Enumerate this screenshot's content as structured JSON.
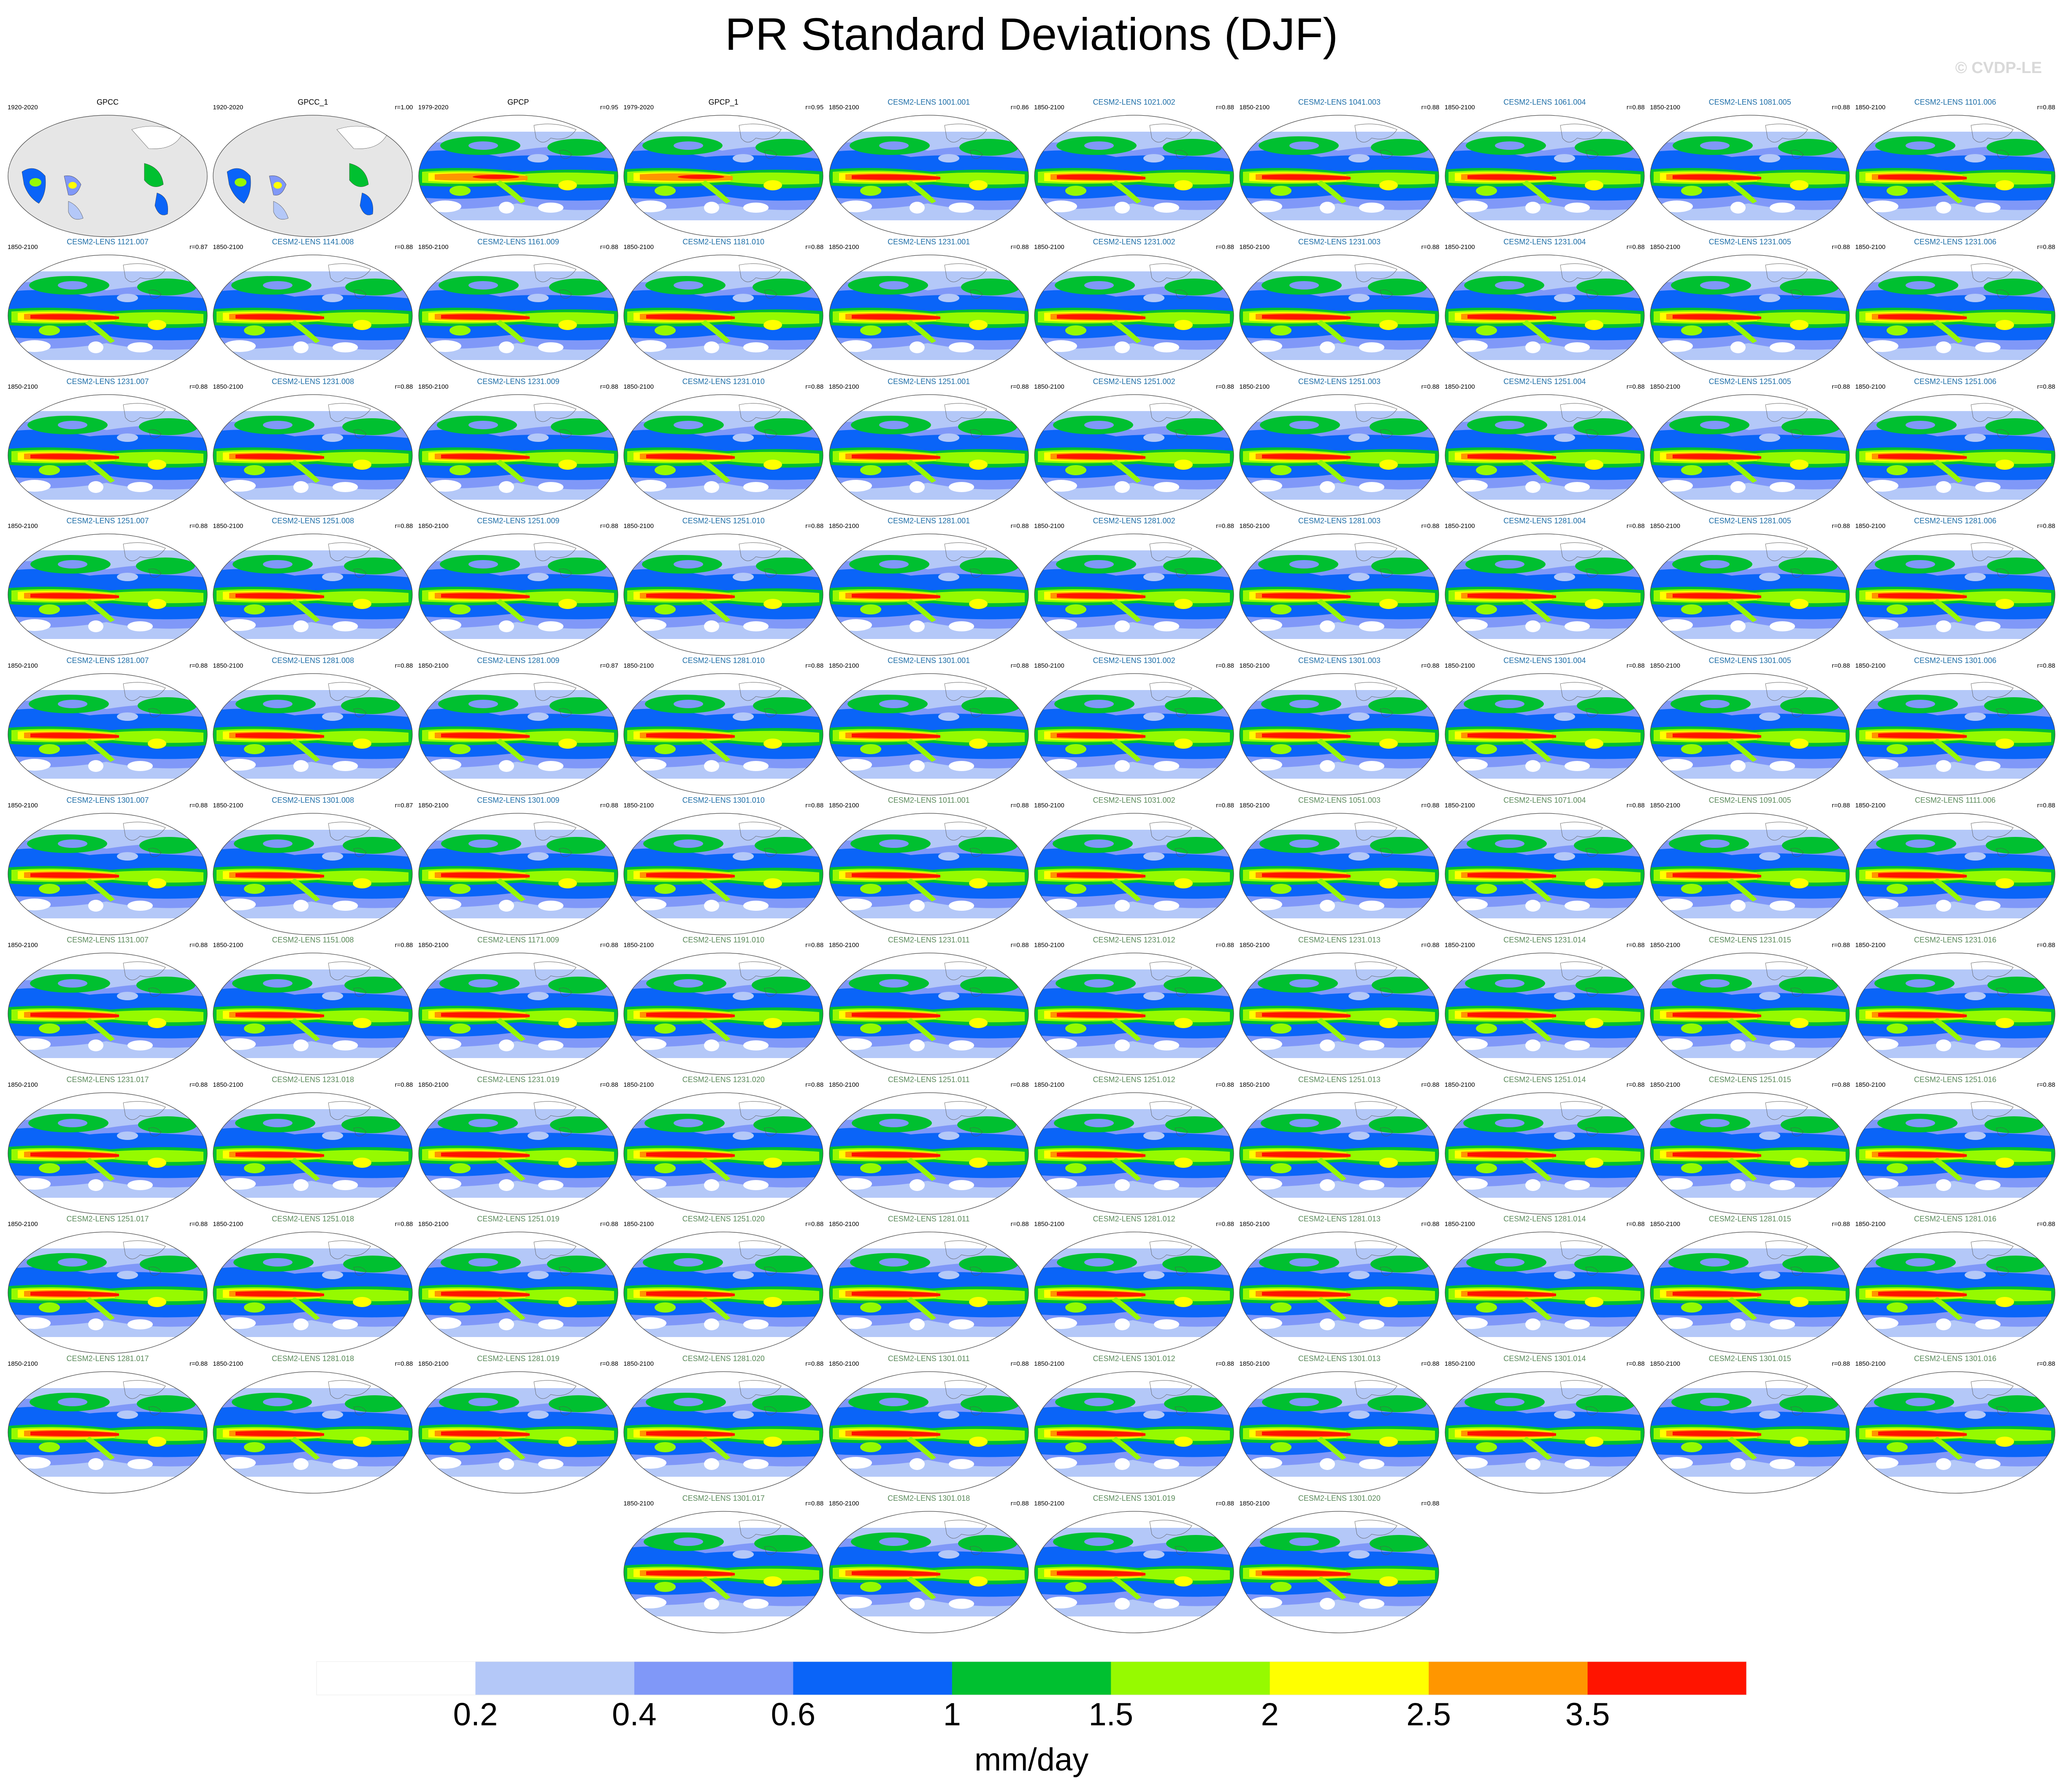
{
  "title": "PR Standard Deviations (DJF)",
  "watermark": "© CVDP-LE",
  "units": "mm/day",
  "colorbar": {
    "colors": [
      "#ffffff",
      "#b4c8f8",
      "#8098f8",
      "#0a64f8",
      "#00c030",
      "#96fa00",
      "#ffff00",
      "#ff9600",
      "#ff1400"
    ],
    "ticks": [
      "0.2",
      "0.4",
      "0.6",
      "1",
      "1.5",
      "2",
      "2.5",
      "3.5"
    ]
  },
  "colors": {
    "title_obs": "#000000",
    "title_blue": "#1f6fa8",
    "title_green": "#5a8a5a"
  },
  "panels": [
    {
      "title": "GPCC",
      "left": "1920-2020",
      "right": "",
      "kind": "obs"
    },
    {
      "title": "GPCC_1",
      "left": "1920-2020",
      "right": "r=1.00",
      "kind": "obs"
    },
    {
      "title": "GPCP",
      "left": "1979-2020",
      "right": "r=0.95",
      "kind": "obs"
    },
    {
      "title": "GPCP_1",
      "left": "1979-2020",
      "right": "r=0.95",
      "kind": "obs"
    },
    {
      "title": "CESM2-LENS 1001.001",
      "left": "1850-2100",
      "right": "r=0.86",
      "kind": "blue"
    },
    {
      "title": "CESM2-LENS 1021.002",
      "left": "1850-2100",
      "right": "r=0.88",
      "kind": "blue"
    },
    {
      "title": "CESM2-LENS 1041.003",
      "left": "1850-2100",
      "right": "r=0.88",
      "kind": "blue"
    },
    {
      "title": "CESM2-LENS 1061.004",
      "left": "1850-2100",
      "right": "r=0.88",
      "kind": "blue"
    },
    {
      "title": "CESM2-LENS 1081.005",
      "left": "1850-2100",
      "right": "r=0.88",
      "kind": "blue"
    },
    {
      "title": "CESM2-LENS 1101.006",
      "left": "1850-2100",
      "right": "r=0.88",
      "kind": "blue"
    },
    {
      "title": "CESM2-LENS 1121.007",
      "left": "1850-2100",
      "right": "r=0.87",
      "kind": "blue"
    },
    {
      "title": "CESM2-LENS 1141.008",
      "left": "1850-2100",
      "right": "r=0.88",
      "kind": "blue"
    },
    {
      "title": "CESM2-LENS 1161.009",
      "left": "1850-2100",
      "right": "r=0.88",
      "kind": "blue"
    },
    {
      "title": "CESM2-LENS 1181.010",
      "left": "1850-2100",
      "right": "r=0.88",
      "kind": "blue"
    },
    {
      "title": "CESM2-LENS 1231.001",
      "left": "1850-2100",
      "right": "r=0.88",
      "kind": "blue"
    },
    {
      "title": "CESM2-LENS 1231.002",
      "left": "1850-2100",
      "right": "r=0.88",
      "kind": "blue"
    },
    {
      "title": "CESM2-LENS 1231.003",
      "left": "1850-2100",
      "right": "r=0.88",
      "kind": "blue"
    },
    {
      "title": "CESM2-LENS 1231.004",
      "left": "1850-2100",
      "right": "r=0.88",
      "kind": "blue"
    },
    {
      "title": "CESM2-LENS 1231.005",
      "left": "1850-2100",
      "right": "r=0.88",
      "kind": "blue"
    },
    {
      "title": "CESM2-LENS 1231.006",
      "left": "1850-2100",
      "right": "r=0.88",
      "kind": "blue"
    },
    {
      "title": "CESM2-LENS 1231.007",
      "left": "1850-2100",
      "right": "r=0.88",
      "kind": "blue"
    },
    {
      "title": "CESM2-LENS 1231.008",
      "left": "1850-2100",
      "right": "r=0.88",
      "kind": "blue"
    },
    {
      "title": "CESM2-LENS 1231.009",
      "left": "1850-2100",
      "right": "r=0.88",
      "kind": "blue"
    },
    {
      "title": "CESM2-LENS 1231.010",
      "left": "1850-2100",
      "right": "r=0.88",
      "kind": "blue"
    },
    {
      "title": "CESM2-LENS 1251.001",
      "left": "1850-2100",
      "right": "r=0.88",
      "kind": "blue"
    },
    {
      "title": "CESM2-LENS 1251.002",
      "left": "1850-2100",
      "right": "r=0.88",
      "kind": "blue"
    },
    {
      "title": "CESM2-LENS 1251.003",
      "left": "1850-2100",
      "right": "r=0.88",
      "kind": "blue"
    },
    {
      "title": "CESM2-LENS 1251.004",
      "left": "1850-2100",
      "right": "r=0.88",
      "kind": "blue"
    },
    {
      "title": "CESM2-LENS 1251.005",
      "left": "1850-2100",
      "right": "r=0.88",
      "kind": "blue"
    },
    {
      "title": "CESM2-LENS 1251.006",
      "left": "1850-2100",
      "right": "r=0.88",
      "kind": "blue"
    },
    {
      "title": "CESM2-LENS 1251.007",
      "left": "1850-2100",
      "right": "r=0.88",
      "kind": "blue"
    },
    {
      "title": "CESM2-LENS 1251.008",
      "left": "1850-2100",
      "right": "r=0.88",
      "kind": "blue"
    },
    {
      "title": "CESM2-LENS 1251.009",
      "left": "1850-2100",
      "right": "r=0.88",
      "kind": "blue"
    },
    {
      "title": "CESM2-LENS 1251.010",
      "left": "1850-2100",
      "right": "r=0.88",
      "kind": "blue"
    },
    {
      "title": "CESM2-LENS 1281.001",
      "left": "1850-2100",
      "right": "r=0.88",
      "kind": "blue"
    },
    {
      "title": "CESM2-LENS 1281.002",
      "left": "1850-2100",
      "right": "r=0.88",
      "kind": "blue"
    },
    {
      "title": "CESM2-LENS 1281.003",
      "left": "1850-2100",
      "right": "r=0.88",
      "kind": "blue"
    },
    {
      "title": "CESM2-LENS 1281.004",
      "left": "1850-2100",
      "right": "r=0.88",
      "kind": "blue"
    },
    {
      "title": "CESM2-LENS 1281.005",
      "left": "1850-2100",
      "right": "r=0.88",
      "kind": "blue"
    },
    {
      "title": "CESM2-LENS 1281.006",
      "left": "1850-2100",
      "right": "r=0.88",
      "kind": "blue"
    },
    {
      "title": "CESM2-LENS 1281.007",
      "left": "1850-2100",
      "right": "r=0.88",
      "kind": "blue"
    },
    {
      "title": "CESM2-LENS 1281.008",
      "left": "1850-2100",
      "right": "r=0.88",
      "kind": "blue"
    },
    {
      "title": "CESM2-LENS 1281.009",
      "left": "1850-2100",
      "right": "r=0.87",
      "kind": "blue"
    },
    {
      "title": "CESM2-LENS 1281.010",
      "left": "1850-2100",
      "right": "r=0.88",
      "kind": "blue"
    },
    {
      "title": "CESM2-LENS 1301.001",
      "left": "1850-2100",
      "right": "r=0.88",
      "kind": "blue"
    },
    {
      "title": "CESM2-LENS 1301.002",
      "left": "1850-2100",
      "right": "r=0.88",
      "kind": "blue"
    },
    {
      "title": "CESM2-LENS 1301.003",
      "left": "1850-2100",
      "right": "r=0.88",
      "kind": "blue"
    },
    {
      "title": "CESM2-LENS 1301.004",
      "left": "1850-2100",
      "right": "r=0.88",
      "kind": "blue"
    },
    {
      "title": "CESM2-LENS 1301.005",
      "left": "1850-2100",
      "right": "r=0.88",
      "kind": "blue"
    },
    {
      "title": "CESM2-LENS 1301.006",
      "left": "1850-2100",
      "right": "r=0.88",
      "kind": "blue"
    },
    {
      "title": "CESM2-LENS 1301.007",
      "left": "1850-2100",
      "right": "r=0.88",
      "kind": "blue"
    },
    {
      "title": "CESM2-LENS 1301.008",
      "left": "1850-2100",
      "right": "r=0.87",
      "kind": "blue"
    },
    {
      "title": "CESM2-LENS 1301.009",
      "left": "1850-2100",
      "right": "r=0.88",
      "kind": "blue"
    },
    {
      "title": "CESM2-LENS 1301.010",
      "left": "1850-2100",
      "right": "r=0.88",
      "kind": "blue"
    },
    {
      "title": "CESM2-LENS 1011.001",
      "left": "1850-2100",
      "right": "r=0.88",
      "kind": "green"
    },
    {
      "title": "CESM2-LENS 1031.002",
      "left": "1850-2100",
      "right": "r=0.88",
      "kind": "green"
    },
    {
      "title": "CESM2-LENS 1051.003",
      "left": "1850-2100",
      "right": "r=0.88",
      "kind": "green"
    },
    {
      "title": "CESM2-LENS 1071.004",
      "left": "1850-2100",
      "right": "r=0.88",
      "kind": "green"
    },
    {
      "title": "CESM2-LENS 1091.005",
      "left": "1850-2100",
      "right": "r=0.88",
      "kind": "green"
    },
    {
      "title": "CESM2-LENS 1111.006",
      "left": "1850-2100",
      "right": "r=0.88",
      "kind": "green"
    },
    {
      "title": "CESM2-LENS 1131.007",
      "left": "1850-2100",
      "right": "r=0.88",
      "kind": "green"
    },
    {
      "title": "CESM2-LENS 1151.008",
      "left": "1850-2100",
      "right": "r=0.88",
      "kind": "green"
    },
    {
      "title": "CESM2-LENS 1171.009",
      "left": "1850-2100",
      "right": "r=0.88",
      "kind": "green"
    },
    {
      "title": "CESM2-LENS 1191.010",
      "left": "1850-2100",
      "right": "r=0.88",
      "kind": "green"
    },
    {
      "title": "CESM2-LENS 1231.011",
      "left": "1850-2100",
      "right": "r=0.88",
      "kind": "green"
    },
    {
      "title": "CESM2-LENS 1231.012",
      "left": "1850-2100",
      "right": "r=0.88",
      "kind": "green"
    },
    {
      "title": "CESM2-LENS 1231.013",
      "left": "1850-2100",
      "right": "r=0.88",
      "kind": "green"
    },
    {
      "title": "CESM2-LENS 1231.014",
      "left": "1850-2100",
      "right": "r=0.88",
      "kind": "green"
    },
    {
      "title": "CESM2-LENS 1231.015",
      "left": "1850-2100",
      "right": "r=0.88",
      "kind": "green"
    },
    {
      "title": "CESM2-LENS 1231.016",
      "left": "1850-2100",
      "right": "r=0.88",
      "kind": "green"
    },
    {
      "title": "CESM2-LENS 1231.017",
      "left": "1850-2100",
      "right": "r=0.88",
      "kind": "green"
    },
    {
      "title": "CESM2-LENS 1231.018",
      "left": "1850-2100",
      "right": "r=0.88",
      "kind": "green"
    },
    {
      "title": "CESM2-LENS 1231.019",
      "left": "1850-2100",
      "right": "r=0.88",
      "kind": "green"
    },
    {
      "title": "CESM2-LENS 1231.020",
      "left": "1850-2100",
      "right": "r=0.88",
      "kind": "green"
    },
    {
      "title": "CESM2-LENS 1251.011",
      "left": "1850-2100",
      "right": "r=0.88",
      "kind": "green"
    },
    {
      "title": "CESM2-LENS 1251.012",
      "left": "1850-2100",
      "right": "r=0.88",
      "kind": "green"
    },
    {
      "title": "CESM2-LENS 1251.013",
      "left": "1850-2100",
      "right": "r=0.88",
      "kind": "green"
    },
    {
      "title": "CESM2-LENS 1251.014",
      "left": "1850-2100",
      "right": "r=0.88",
      "kind": "green"
    },
    {
      "title": "CESM2-LENS 1251.015",
      "left": "1850-2100",
      "right": "r=0.88",
      "kind": "green"
    },
    {
      "title": "CESM2-LENS 1251.016",
      "left": "1850-2100",
      "right": "r=0.88",
      "kind": "green"
    },
    {
      "title": "CESM2-LENS 1251.017",
      "left": "1850-2100",
      "right": "r=0.88",
      "kind": "green"
    },
    {
      "title": "CESM2-LENS 1251.018",
      "left": "1850-2100",
      "right": "r=0.88",
      "kind": "green"
    },
    {
      "title": "CESM2-LENS 1251.019",
      "left": "1850-2100",
      "right": "r=0.88",
      "kind": "green"
    },
    {
      "title": "CESM2-LENS 1251.020",
      "left": "1850-2100",
      "right": "r=0.88",
      "kind": "green"
    },
    {
      "title": "CESM2-LENS 1281.011",
      "left": "1850-2100",
      "right": "r=0.88",
      "kind": "green"
    },
    {
      "title": "CESM2-LENS 1281.012",
      "left": "1850-2100",
      "right": "r=0.88",
      "kind": "green"
    },
    {
      "title": "CESM2-LENS 1281.013",
      "left": "1850-2100",
      "right": "r=0.88",
      "kind": "green"
    },
    {
      "title": "CESM2-LENS 1281.014",
      "left": "1850-2100",
      "right": "r=0.88",
      "kind": "green"
    },
    {
      "title": "CESM2-LENS 1281.015",
      "left": "1850-2100",
      "right": "r=0.88",
      "kind": "green"
    },
    {
      "title": "CESM2-LENS 1281.016",
      "left": "1850-2100",
      "right": "r=0.88",
      "kind": "green"
    },
    {
      "title": "CESM2-LENS 1281.017",
      "left": "1850-2100",
      "right": "r=0.88",
      "kind": "green"
    },
    {
      "title": "CESM2-LENS 1281.018",
      "left": "1850-2100",
      "right": "r=0.88",
      "kind": "green"
    },
    {
      "title": "CESM2-LENS 1281.019",
      "left": "1850-2100",
      "right": "r=0.88",
      "kind": "green"
    },
    {
      "title": "CESM2-LENS 1281.020",
      "left": "1850-2100",
      "right": "r=0.88",
      "kind": "green"
    },
    {
      "title": "CESM2-LENS 1301.011",
      "left": "1850-2100",
      "right": "r=0.88",
      "kind": "green"
    },
    {
      "title": "CESM2-LENS 1301.012",
      "left": "1850-2100",
      "right": "r=0.88",
      "kind": "green"
    },
    {
      "title": "CESM2-LENS 1301.013",
      "left": "1850-2100",
      "right": "r=0.88",
      "kind": "green"
    },
    {
      "title": "CESM2-LENS 1301.014",
      "left": "1850-2100",
      "right": "r=0.88",
      "kind": "green"
    },
    {
      "title": "CESM2-LENS 1301.015",
      "left": "1850-2100",
      "right": "r=0.88",
      "kind": "green"
    },
    {
      "title": "CESM2-LENS 1301.016",
      "left": "1850-2100",
      "right": "r=0.88",
      "kind": "green"
    },
    {
      "title": "CESM2-LENS 1301.017",
      "left": "1850-2100",
      "right": "r=0.88",
      "kind": "green"
    },
    {
      "title": "CESM2-LENS 1301.018",
      "left": "1850-2100",
      "right": "r=0.88",
      "kind": "green"
    },
    {
      "title": "CESM2-LENS 1301.019",
      "left": "1850-2100",
      "right": "r=0.88",
      "kind": "green"
    },
    {
      "title": "CESM2-LENS 1301.020",
      "left": "1850-2100",
      "right": "r=0.88",
      "kind": "green"
    }
  ],
  "chart_data": {
    "type": "heatmap",
    "title": "PR Standard Deviations (DJF)",
    "colorbar_label": "mm/day",
    "levels": [
      0.2,
      0.4,
      0.6,
      1,
      1.5,
      2,
      2.5,
      3.5
    ],
    "panel_count": 104
  }
}
